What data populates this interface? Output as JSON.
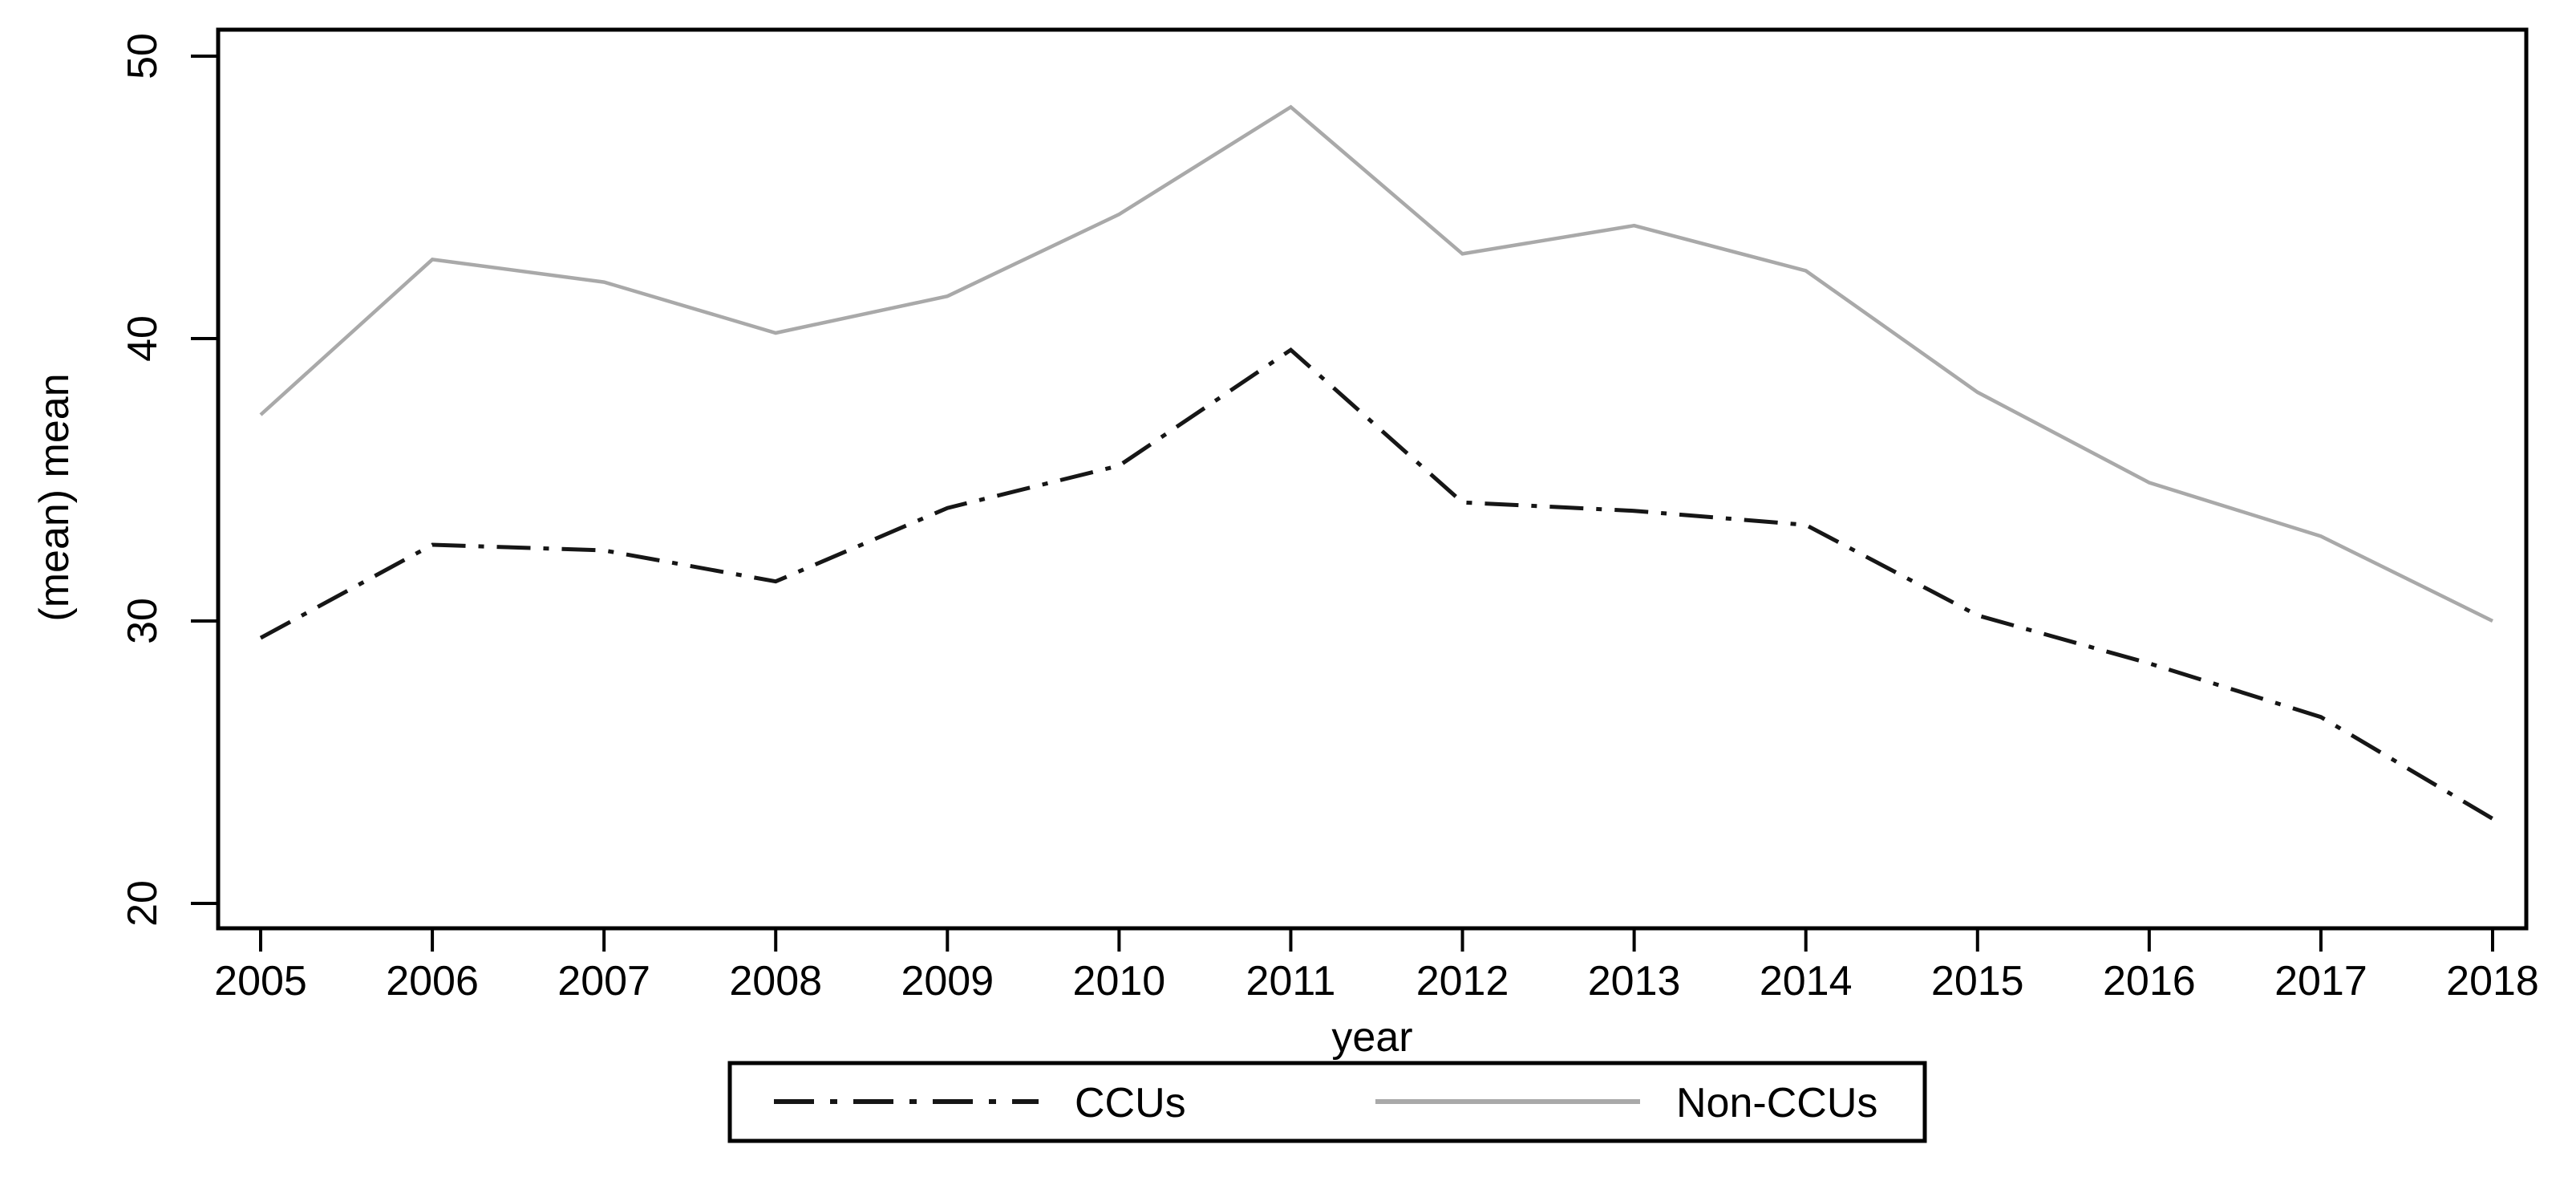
{
  "chart_data": {
    "type": "line",
    "title": "",
    "xlabel": "year",
    "ylabel": "(mean) mean",
    "x": [
      2005,
      2006,
      2007,
      2008,
      2009,
      2010,
      2011,
      2012,
      2013,
      2014,
      2015,
      2016,
      2017,
      2018
    ],
    "series": [
      {
        "name": "CCUs",
        "style": "dash-dot",
        "color": "#161616",
        "values": [
          29.4,
          32.7,
          32.5,
          31.4,
          34.0,
          35.5,
          39.6,
          34.2,
          33.9,
          33.4,
          30.2,
          28.5,
          26.6,
          23.0
        ]
      },
      {
        "name": "Non-CCUs",
        "style": "solid",
        "color": "#a9a9a9",
        "values": [
          37.3,
          42.8,
          42.0,
          40.2,
          41.5,
          44.4,
          48.2,
          43.0,
          44.0,
          42.4,
          38.1,
          34.9,
          33.0,
          30.0
        ]
      }
    ],
    "ylim": [
      20,
      50
    ],
    "yticks": [
      20,
      30,
      40,
      50
    ],
    "xticks": [
      2005,
      2006,
      2007,
      2008,
      2009,
      2010,
      2011,
      2012,
      2013,
      2014,
      2015,
      2016,
      2017,
      2018
    ],
    "grid": false,
    "legend_position": "bottom-center-boxed",
    "axis_color": "#000000",
    "background": "#ffffff"
  }
}
